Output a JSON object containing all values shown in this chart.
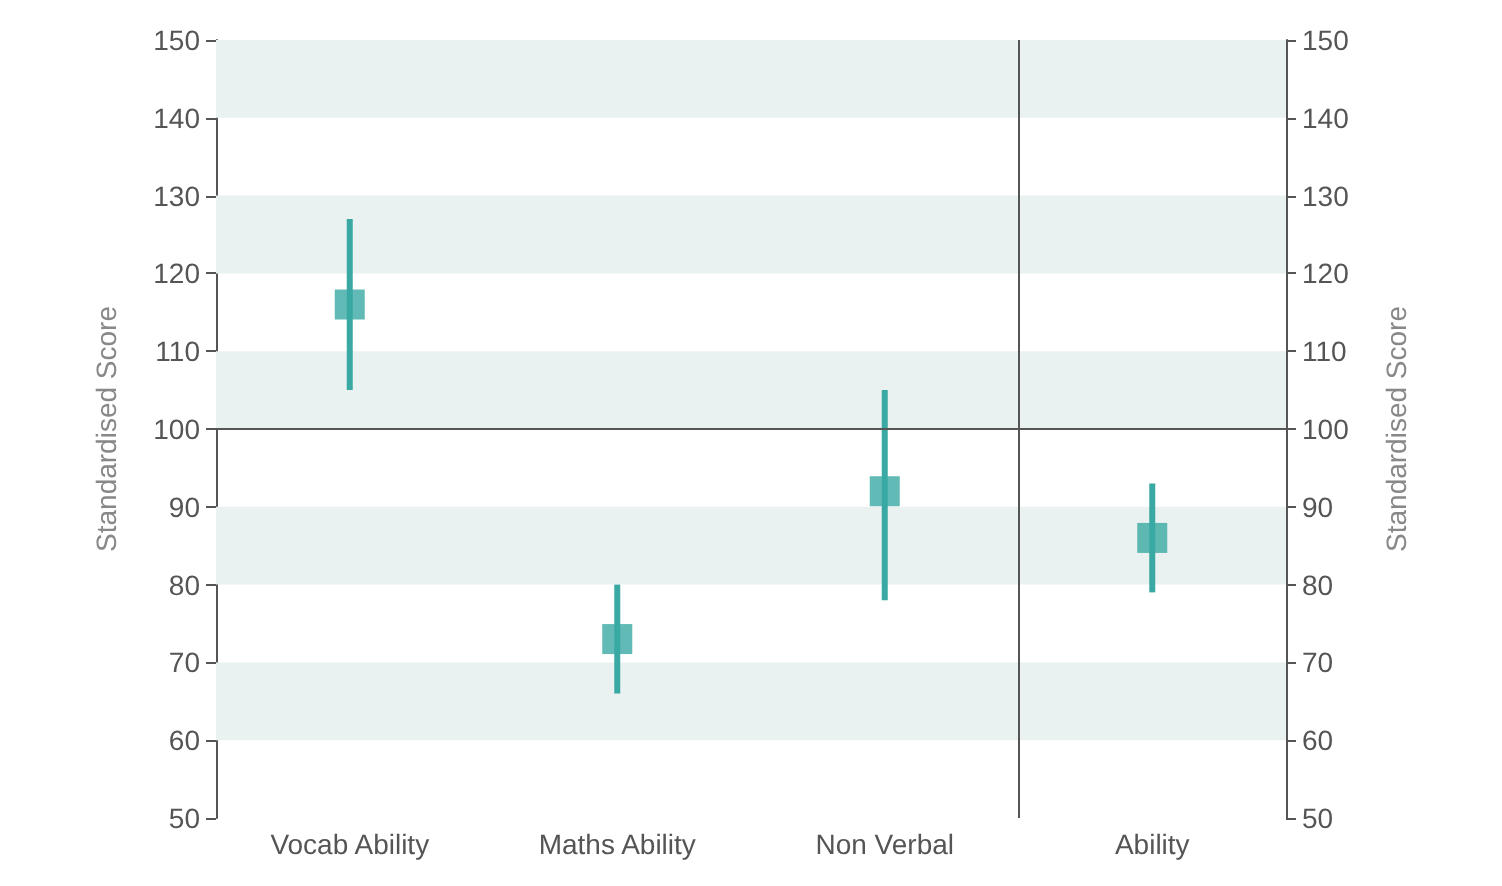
{
  "chart_data": {
    "type": "scatter",
    "ylabel": "Standardised Score",
    "y2label": "Standardised Score",
    "categories": [
      "Vocab Ability",
      "Maths Ability",
      "Non Verbal",
      "Ability"
    ],
    "values": [
      116,
      73,
      92,
      86
    ],
    "errors": [
      [
        105,
        127
      ],
      [
        66,
        80
      ],
      [
        78,
        105
      ],
      [
        79,
        93
      ]
    ],
    "color": "#3aa9a3",
    "marker": "square",
    "grid": false,
    "ylim": [
      50,
      150
    ],
    "yticks": [
      50,
      60,
      70,
      80,
      90,
      100,
      110,
      120,
      130,
      140,
      150
    ],
    "y2lim": [
      50,
      150
    ],
    "y2ticks": [
      50,
      60,
      70,
      80,
      90,
      100,
      110,
      120,
      130,
      140,
      150
    ],
    "bands": [
      {
        "axis": "y",
        "from": 140,
        "to": 150,
        "color": "#e9f2f1"
      },
      {
        "axis": "y",
        "from": 120,
        "to": 130,
        "color": "#e9f2f1"
      },
      {
        "axis": "y",
        "from": 100,
        "to": 110,
        "color": "#e9f2f1"
      },
      {
        "axis": "y",
        "from": 80,
        "to": 90,
        "color": "#e9f2f1"
      },
      {
        "axis": "y",
        "from": 60,
        "to": 70,
        "color": "#e9f2f1"
      }
    ],
    "ref_lines": [
      {
        "axis": "y",
        "value": 100,
        "color": "#555555"
      }
    ]
  }
}
